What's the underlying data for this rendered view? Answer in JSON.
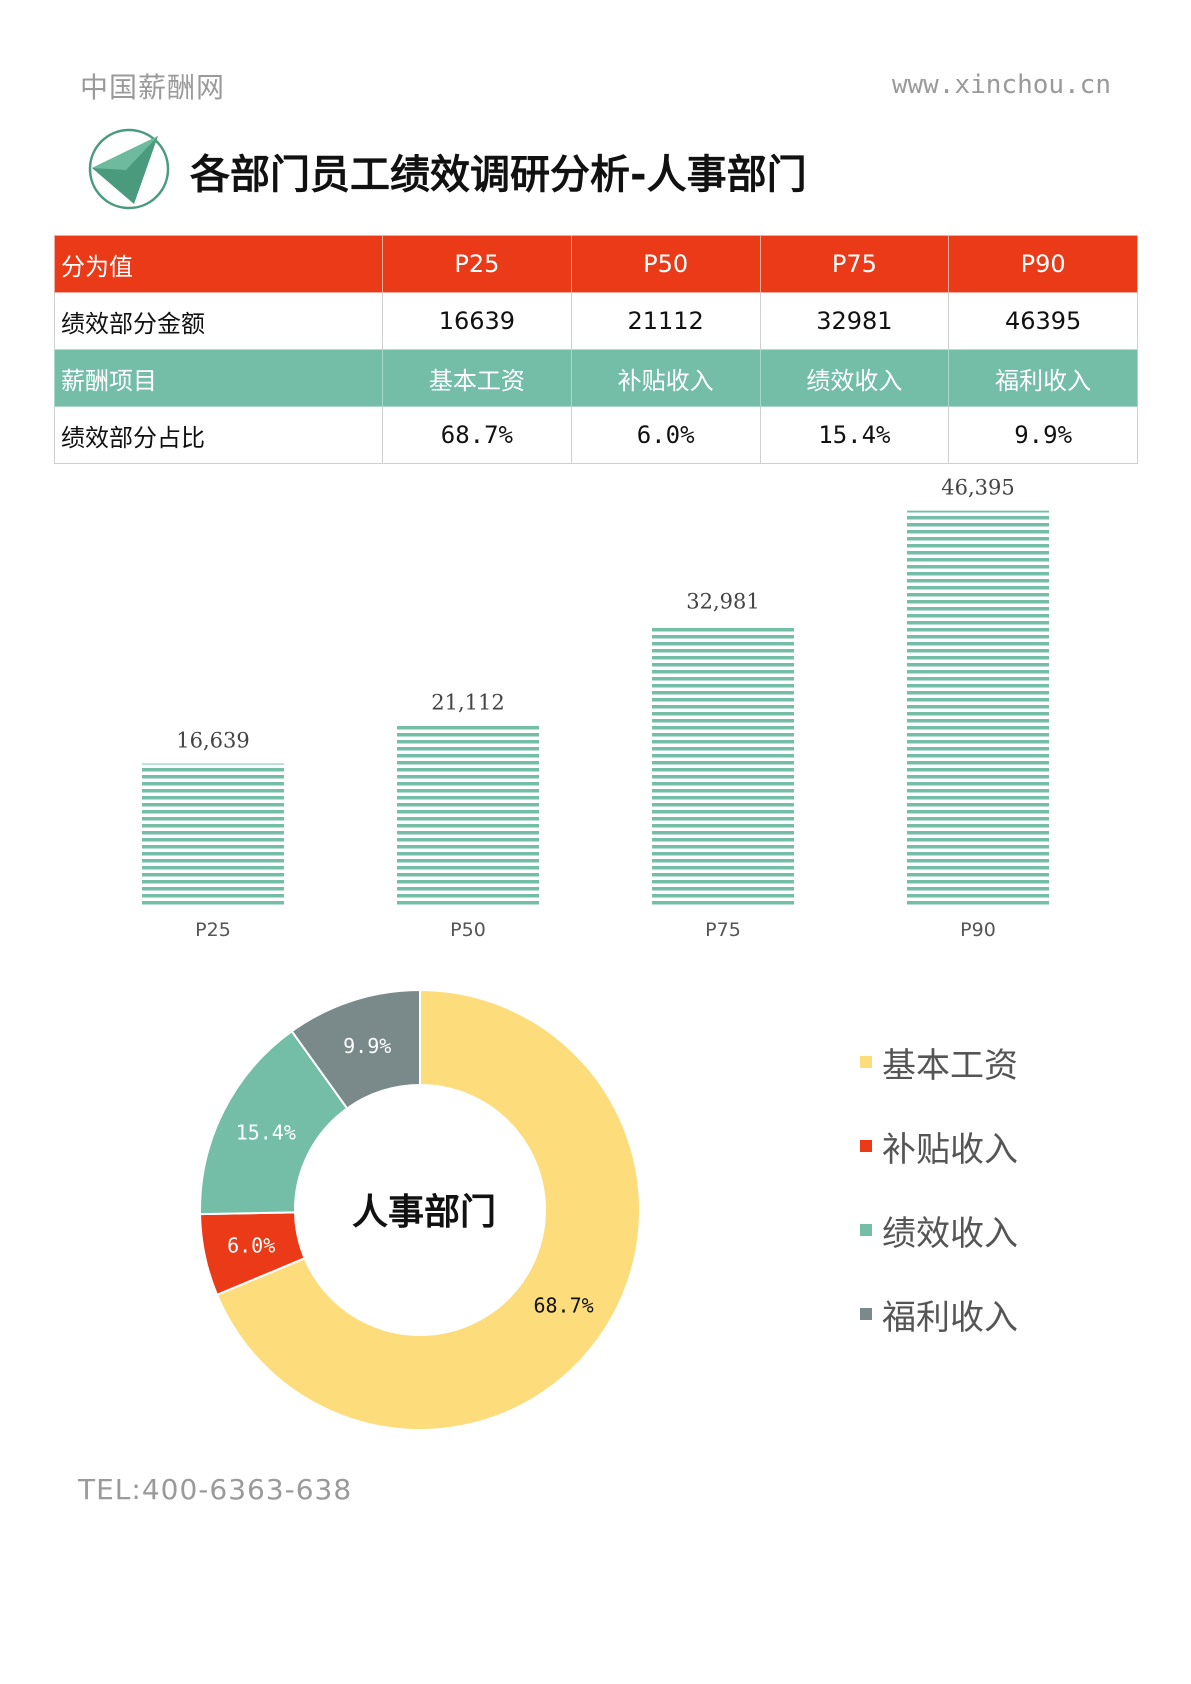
{
  "header": {
    "site_name": "中国薪酬网",
    "url": "www.xinchou.cn"
  },
  "title": "各部门员工绩效调研分析-人事部门",
  "table": {
    "row1": [
      "分为值",
      "P25",
      "P50",
      "P75",
      "P90"
    ],
    "row2": [
      "绩效部分金额",
      "16639",
      "21112",
      "32981",
      "46395"
    ],
    "row3": [
      "薪酬项目",
      "基本工资",
      "补贴收入",
      "绩效收入",
      "福利收入"
    ],
    "row4": [
      "绩效部分占比",
      "68.7%",
      "6.0%",
      "15.4%",
      "9.9%"
    ]
  },
  "chart_data": [
    {
      "type": "bar",
      "categories": [
        "P25",
        "P50",
        "P75",
        "P90"
      ],
      "values": [
        16639,
        21112,
        32981,
        46395
      ],
      "value_labels": [
        "16,639",
        "21,112",
        "32,981",
        "46,395"
      ],
      "ylim": [
        0,
        50000
      ],
      "color": "#74bea7",
      "pattern": "horizontal-stripes",
      "grid": false
    },
    {
      "type": "pie",
      "donut": true,
      "center_label": "人事部门",
      "categories": [
        "基本工资",
        "补贴收入",
        "绩效收入",
        "福利收入"
      ],
      "values": [
        68.7,
        6.0,
        15.4,
        9.9
      ],
      "value_labels": [
        "68.7%",
        "6.0%",
        "15.4%",
        "9.9%"
      ],
      "colors": [
        "#fddc7b",
        "#ea3a18",
        "#74bea7",
        "#7a8a8a"
      ],
      "legend_position": "right"
    }
  ],
  "footer": {
    "tel": "TEL:400-6363-638"
  }
}
